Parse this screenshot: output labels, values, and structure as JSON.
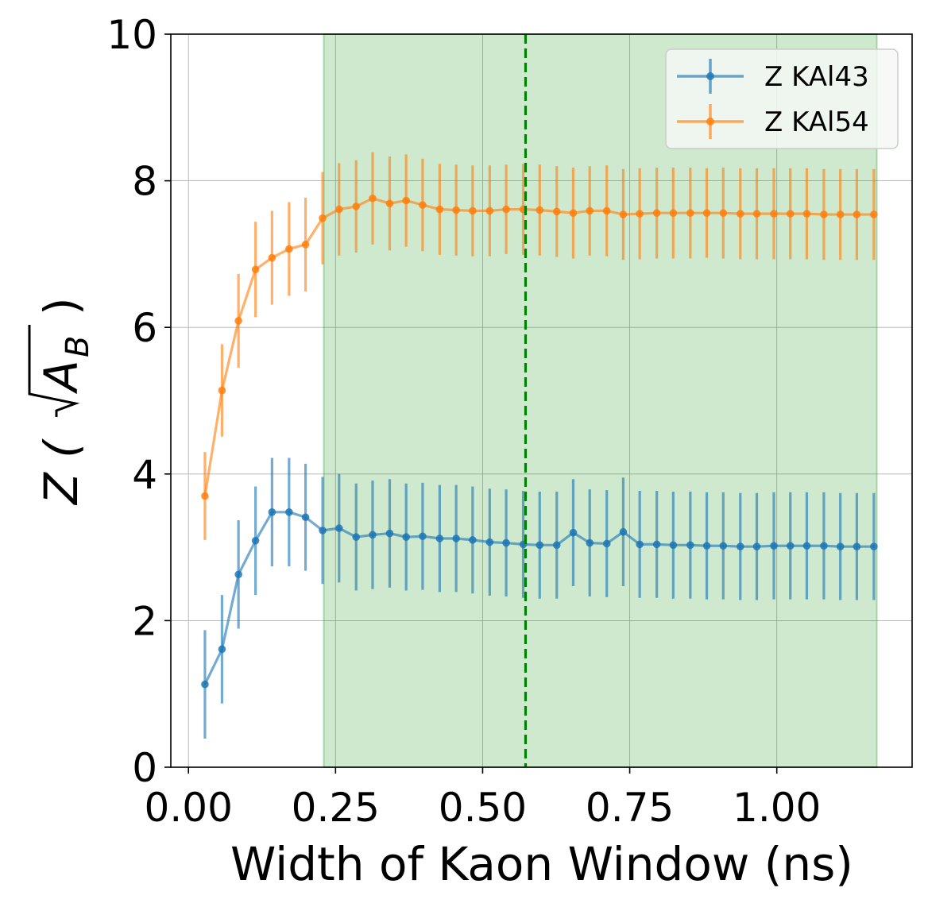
{
  "chart_data": {
    "type": "line",
    "xlabel": "Width of Kaon Window (ns)",
    "ylabel_prefix": "Z (",
    "ylabel_sqrt_var": "A",
    "ylabel_sqrt_sub": "B",
    "ylabel_suffix": ")",
    "xlim": [
      -0.03,
      1.23
    ],
    "ylim": [
      0,
      10
    ],
    "xticks": [
      0.0,
      0.25,
      0.5,
      0.75,
      1.0
    ],
    "xtick_labels": [
      "0.00",
      "0.25",
      "0.50",
      "0.75",
      "1.00"
    ],
    "yticks": [
      0,
      2,
      4,
      6,
      8,
      10
    ],
    "ytick_labels": [
      "0",
      "2",
      "4",
      "6",
      "8",
      "10"
    ],
    "grid": true,
    "legend_position": "upper-right",
    "shaded_region": {
      "x_start": 0.23,
      "x_end": 1.17,
      "color": "#2ca02c",
      "alpha": 0.23
    },
    "vertical_line": {
      "x": 0.573,
      "color": "#008000",
      "style": "dashed"
    },
    "x": [
      0.028,
      0.057,
      0.085,
      0.114,
      0.142,
      0.171,
      0.199,
      0.228,
      0.256,
      0.285,
      0.313,
      0.342,
      0.37,
      0.398,
      0.427,
      0.455,
      0.483,
      0.512,
      0.54,
      0.569,
      0.597,
      0.626,
      0.654,
      0.682,
      0.711,
      0.739,
      0.767,
      0.796,
      0.824,
      0.853,
      0.881,
      0.909,
      0.938,
      0.966,
      0.995,
      1.023,
      1.051,
      1.08,
      1.108,
      1.136,
      1.165
    ],
    "series": [
      {
        "name": "Z KAl43",
        "color": "#1f77b4",
        "values": [
          1.13,
          1.61,
          2.63,
          3.09,
          3.48,
          3.48,
          3.41,
          3.23,
          3.26,
          3.14,
          3.17,
          3.19,
          3.14,
          3.15,
          3.12,
          3.12,
          3.1,
          3.07,
          3.06,
          3.04,
          3.03,
          3.03,
          3.2,
          3.06,
          3.05,
          3.21,
          3.04,
          3.04,
          3.03,
          3.03,
          3.02,
          3.02,
          3.01,
          3.01,
          3.02,
          3.02,
          3.02,
          3.02,
          3.01,
          3.01,
          3.01
        ],
        "errors": [
          0.74,
          0.74,
          0.74,
          0.74,
          0.74,
          0.74,
          0.73,
          0.73,
          0.74,
          0.73,
          0.74,
          0.74,
          0.73,
          0.73,
          0.73,
          0.73,
          0.73,
          0.73,
          0.73,
          0.73,
          0.73,
          0.73,
          0.73,
          0.73,
          0.73,
          0.74,
          0.73,
          0.73,
          0.73,
          0.73,
          0.73,
          0.73,
          0.73,
          0.73,
          0.73,
          0.73,
          0.73,
          0.73,
          0.73,
          0.73,
          0.73
        ]
      },
      {
        "name": "Z KAl54",
        "color": "#ff7f0e",
        "values": [
          3.7,
          5.14,
          6.09,
          6.79,
          6.95,
          7.07,
          7.13,
          7.49,
          7.61,
          7.65,
          7.76,
          7.69,
          7.73,
          7.67,
          7.61,
          7.6,
          7.59,
          7.59,
          7.61,
          7.61,
          7.6,
          7.58,
          7.56,
          7.59,
          7.59,
          7.54,
          7.55,
          7.56,
          7.56,
          7.56,
          7.56,
          7.56,
          7.55,
          7.55,
          7.55,
          7.55,
          7.55,
          7.54,
          7.54,
          7.54,
          7.54
        ],
        "errors": [
          0.6,
          0.63,
          0.64,
          0.65,
          0.64,
          0.64,
          0.64,
          0.63,
          0.63,
          0.63,
          0.63,
          0.64,
          0.63,
          0.63,
          0.62,
          0.62,
          0.62,
          0.62,
          0.61,
          0.62,
          0.62,
          0.62,
          0.62,
          0.61,
          0.62,
          0.62,
          0.62,
          0.62,
          0.62,
          0.62,
          0.61,
          0.62,
          0.62,
          0.62,
          0.62,
          0.62,
          0.62,
          0.62,
          0.62,
          0.62,
          0.62
        ]
      }
    ]
  }
}
